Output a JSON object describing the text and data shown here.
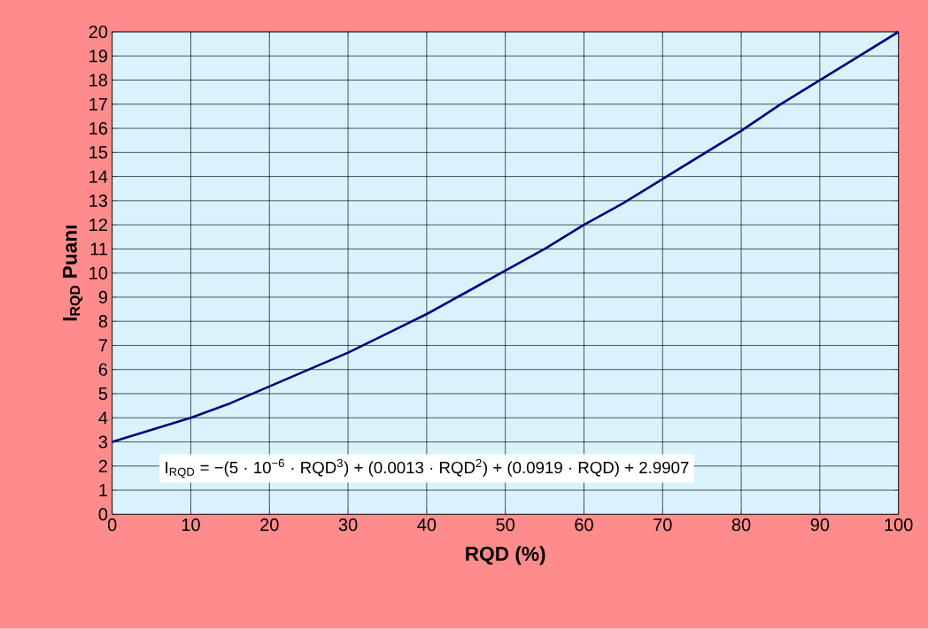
{
  "chart_data": {
    "type": "line",
    "xlabel": "RQD (%)",
    "ylabel": "I$_{RQD}$ Puanı",
    "x": [
      0,
      5,
      10,
      15,
      20,
      25,
      30,
      35,
      40,
      45,
      50,
      55,
      60,
      65,
      70,
      75,
      80,
      85,
      90,
      95,
      100
    ],
    "series": [
      {
        "color": "#000080",
        "values": [
          3,
          3.5,
          4,
          4.6,
          5.3,
          6,
          6.7,
          7.5,
          8.3,
          9.2,
          10.1,
          11,
          12,
          12.9,
          13.9,
          14.9,
          15.9,
          17,
          18,
          19,
          20
        ]
      }
    ],
    "xlim": [
      0,
      100
    ],
    "ylim": [
      0,
      20
    ],
    "xticks": [
      0,
      10,
      20,
      30,
      40,
      50,
      60,
      70,
      80,
      90,
      100
    ],
    "yticks": [
      0,
      1,
      2,
      3,
      4,
      5,
      6,
      7,
      8,
      9,
      10,
      11,
      12,
      13,
      14,
      15,
      16,
      17,
      18,
      19,
      20
    ],
    "grid": true,
    "marker": "none",
    "line_style": "solid",
    "annotations": [
      "I$_{RQD}$  = −(5 · 10$^{−6}$ · RQD$^{3}$) + (0.0013 · RQD$^{2}$) + (0.0919 · RQD) + 2.9907"
    ]
  }
}
